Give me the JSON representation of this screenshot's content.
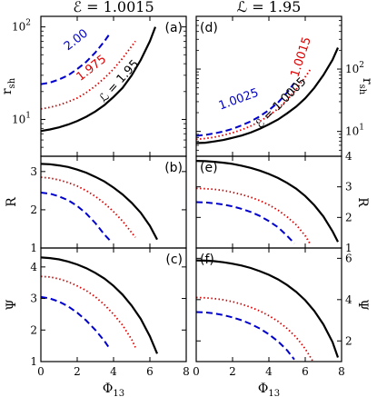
{
  "chart_data": [
    {
      "id": "a",
      "type": "line",
      "panel_label": "(a)",
      "title": "ℰ = 1.0015",
      "ylabel_main": "r",
      "ylabel_sub": "sh",
      "xlim": [
        0,
        8
      ],
      "ylim": [
        4,
        130
      ],
      "yscale": "log",
      "yticks": [
        10,
        100
      ],
      "ytick_labels": [
        "10¹",
        "10²"
      ],
      "series": [
        {
          "name": "2.00",
          "color": "#0000cc",
          "style": "dashed",
          "x": [
            0,
            0.5,
            1,
            1.5,
            2,
            2.5,
            3,
            3.5,
            3.8
          ],
          "y": [
            24,
            25,
            27,
            30,
            35,
            42,
            53,
            70,
            85
          ]
        },
        {
          "name": "1.975",
          "color": "#dd0000",
          "style": "dotted",
          "x": [
            0,
            0.5,
            1,
            1.5,
            2,
            2.5,
            3,
            3.5,
            4,
            4.5,
            5,
            5.2
          ],
          "y": [
            13,
            13.5,
            14.3,
            15.5,
            17,
            19.5,
            23,
            28,
            35,
            46,
            62,
            70
          ]
        },
        {
          "name": "ℒ = 1.95",
          "color": "#000000",
          "style": "solid",
          "x": [
            0,
            0.5,
            1,
            1.5,
            2,
            2.5,
            3,
            3.5,
            4,
            4.5,
            5,
            5.5,
            6,
            6.3
          ],
          "y": [
            7.5,
            7.8,
            8.2,
            8.8,
            9.6,
            10.7,
            12.2,
            14.3,
            17.5,
            22,
            30,
            44,
            70,
            100
          ]
        }
      ]
    },
    {
      "id": "b",
      "type": "line",
      "panel_label": "(b)",
      "ylabel": "R",
      "xlim": [
        0,
        8
      ],
      "ylim": [
        1,
        3.4
      ],
      "yticks": [
        1,
        2,
        3
      ],
      "ytick_labels": [
        "1",
        "2",
        "3"
      ],
      "series": [
        {
          "name": "2.00",
          "color": "#0000cc",
          "style": "dashed",
          "x": [
            0,
            0.5,
            1,
            1.5,
            2,
            2.5,
            3,
            3.5,
            3.8
          ],
          "y": [
            2.45,
            2.42,
            2.35,
            2.25,
            2.1,
            1.9,
            1.65,
            1.35,
            1.2
          ]
        },
        {
          "name": "1.975",
          "color": "#dd0000",
          "style": "dotted",
          "x": [
            0,
            0.5,
            1,
            1.5,
            2,
            2.5,
            3,
            3.5,
            4,
            4.5,
            5,
            5.2
          ],
          "y": [
            2.85,
            2.83,
            2.78,
            2.71,
            2.62,
            2.5,
            2.35,
            2.17,
            1.95,
            1.7,
            1.4,
            1.28
          ]
        },
        {
          "name": "ℒ = 1.95",
          "color": "#000000",
          "style": "solid",
          "x": [
            0,
            0.5,
            1,
            1.5,
            2,
            2.5,
            3,
            3.5,
            4,
            4.5,
            5,
            5.5,
            6,
            6.4
          ],
          "y": [
            3.2,
            3.19,
            3.16,
            3.12,
            3.05,
            2.97,
            2.86,
            2.74,
            2.58,
            2.4,
            2.18,
            1.92,
            1.58,
            1.22
          ]
        }
      ]
    },
    {
      "id": "c",
      "type": "line",
      "panel_label": "(c)",
      "ylabel": "Ψ",
      "xlim": [
        0,
        8
      ],
      "ylim": [
        1,
        4.6
      ],
      "xticks": [
        0,
        2,
        4,
        6,
        8
      ],
      "xtick_labels": [
        "0",
        "2",
        "4",
        "6",
        "8"
      ],
      "xlabel_main": "Φ",
      "xlabel_sub": "13",
      "yticks": [
        1,
        2,
        3,
        4
      ],
      "ytick_labels": [
        "1",
        "2",
        "3",
        "4"
      ],
      "series": [
        {
          "name": "2.00",
          "color": "#0000cc",
          "style": "dashed",
          "x": [
            0,
            0.5,
            1,
            1.5,
            2,
            2.5,
            3,
            3.5,
            3.8
          ],
          "y": [
            3.05,
            3.0,
            2.9,
            2.75,
            2.55,
            2.3,
            2.0,
            1.65,
            1.4
          ]
        },
        {
          "name": "1.975",
          "color": "#dd0000",
          "style": "dotted",
          "x": [
            0,
            0.5,
            1,
            1.5,
            2,
            2.5,
            3,
            3.5,
            4,
            4.5,
            5,
            5.2
          ],
          "y": [
            3.7,
            3.68,
            3.62,
            3.53,
            3.4,
            3.25,
            3.05,
            2.8,
            2.5,
            2.15,
            1.7,
            1.45
          ]
        },
        {
          "name": "ℒ = 1.95",
          "color": "#000000",
          "style": "solid",
          "x": [
            0,
            0.5,
            1,
            1.5,
            2,
            2.5,
            3,
            3.5,
            4,
            4.5,
            5,
            5.5,
            6,
            6.4
          ],
          "y": [
            4.3,
            4.28,
            4.24,
            4.17,
            4.08,
            3.96,
            3.81,
            3.63,
            3.4,
            3.12,
            2.77,
            2.35,
            1.8,
            1.25
          ]
        }
      ]
    },
    {
      "id": "d",
      "type": "line",
      "panel_label": "(d)",
      "title": "ℒ = 1.95",
      "ylabel_main": "r",
      "ylabel_sub": "sh",
      "xlim": [
        0,
        8
      ],
      "ylim": [
        4,
        700
      ],
      "yscale": "log",
      "yticks": [
        10,
        100
      ],
      "ytick_labels": [
        "10¹",
        "10²"
      ],
      "series": [
        {
          "name": "1.0025",
          "color": "#0000cc",
          "style": "dashed",
          "x": [
            0,
            0.5,
            1,
            1.5,
            2,
            2.5,
            3,
            3.5,
            4,
            4.5,
            5,
            5.4
          ],
          "y": [
            8.5,
            8.8,
            9.3,
            10,
            11,
            12.5,
            14.5,
            17.5,
            22,
            29,
            42,
            60
          ]
        },
        {
          "name": "1.0015",
          "color": "#dd0000",
          "style": "dotted",
          "x": [
            0,
            0.5,
            1,
            1.5,
            2,
            2.5,
            3,
            3.5,
            4,
            4.5,
            5,
            5.5,
            6,
            6.3
          ],
          "y": [
            7.5,
            7.7,
            8.1,
            8.7,
            9.5,
            10.6,
            12.2,
            14.5,
            18,
            23,
            32,
            47,
            75,
            100
          ]
        },
        {
          "name": "ℰ = 1.0005",
          "color": "#000000",
          "style": "solid",
          "x": [
            0,
            0.5,
            1,
            1.5,
            2,
            2.5,
            3,
            3.5,
            4,
            4.5,
            5,
            5.5,
            6,
            6.5,
            7,
            7.5,
            7.8
          ],
          "y": [
            6.5,
            6.6,
            6.9,
            7.3,
            7.9,
            8.6,
            9.6,
            11,
            13,
            15.5,
            19.5,
            25,
            34,
            50,
            80,
            140,
            220
          ]
        }
      ]
    },
    {
      "id": "e",
      "type": "line",
      "panel_label": "(e)",
      "ylabel": "R",
      "xlim": [
        0,
        8
      ],
      "ylim": [
        1,
        4
      ],
      "yticks": [
        1,
        2,
        3,
        4
      ],
      "ytick_labels": [
        "1",
        "2",
        "3",
        "4"
      ],
      "series": [
        {
          "name": "1.0025",
          "color": "#0000cc",
          "style": "dashed",
          "x": [
            0,
            0.5,
            1,
            1.5,
            2,
            2.5,
            3,
            3.5,
            4,
            4.5,
            5,
            5.4
          ],
          "y": [
            2.5,
            2.49,
            2.46,
            2.42,
            2.36,
            2.28,
            2.18,
            2.05,
            1.88,
            1.68,
            1.4,
            1.15
          ]
        },
        {
          "name": "1.0015",
          "color": "#dd0000",
          "style": "dotted",
          "x": [
            0,
            0.5,
            1,
            1.5,
            2,
            2.5,
            3,
            3.5,
            4,
            4.5,
            5,
            5.5,
            6,
            6.3
          ],
          "y": [
            2.95,
            2.94,
            2.92,
            2.88,
            2.82,
            2.75,
            2.66,
            2.55,
            2.41,
            2.24,
            2.02,
            1.76,
            1.4,
            1.1
          ]
        },
        {
          "name": "ℰ = 1.0005",
          "color": "#000000",
          "style": "solid",
          "x": [
            0,
            0.5,
            1,
            1.5,
            2,
            2.5,
            3,
            3.5,
            4,
            4.5,
            5,
            5.5,
            6,
            6.5,
            7,
            7.5,
            7.8
          ],
          "y": [
            3.85,
            3.84,
            3.82,
            3.79,
            3.75,
            3.69,
            3.62,
            3.53,
            3.42,
            3.29,
            3.13,
            2.94,
            2.7,
            2.4,
            2.03,
            1.55,
            1.2
          ]
        }
      ]
    },
    {
      "id": "f",
      "type": "line",
      "panel_label": "(f)",
      "ylabel": "Ψ",
      "xlim": [
        0,
        8
      ],
      "ylim": [
        1,
        6.5
      ],
      "xticks": [
        0,
        2,
        4,
        6,
        8
      ],
      "xtick_labels": [
        "0",
        "2",
        "4",
        "6",
        "8"
      ],
      "xlabel_main": "Φ",
      "xlabel_sub": "13",
      "yticks": [
        2,
        4,
        6
      ],
      "ytick_labels": [
        "2",
        "4",
        "6"
      ],
      "series": [
        {
          "name": "1.0025",
          "color": "#0000cc",
          "style": "dashed",
          "x": [
            0,
            0.5,
            1,
            1.5,
            2,
            2.5,
            3,
            3.5,
            4,
            4.5,
            5,
            5.4
          ],
          "y": [
            3.4,
            3.38,
            3.33,
            3.25,
            3.14,
            3.0,
            2.82,
            2.6,
            2.32,
            1.98,
            1.55,
            1.1
          ]
        },
        {
          "name": "1.0015",
          "color": "#dd0000",
          "style": "dotted",
          "x": [
            0,
            0.5,
            1,
            1.5,
            2,
            2.5,
            3,
            3.5,
            4,
            4.5,
            5,
            5.5,
            6,
            6.4
          ],
          "y": [
            4.1,
            4.09,
            4.05,
            3.99,
            3.9,
            3.78,
            3.63,
            3.45,
            3.22,
            2.95,
            2.6,
            2.18,
            1.62,
            1.05
          ]
        },
        {
          "name": "ℰ = 1.0005",
          "color": "#000000",
          "style": "solid",
          "x": [
            0,
            0.5,
            1,
            1.5,
            2,
            2.5,
            3,
            3.5,
            4,
            4.5,
            5,
            5.5,
            6,
            6.5,
            7,
            7.5,
            7.8
          ],
          "y": [
            5.9,
            5.89,
            5.86,
            5.81,
            5.74,
            5.65,
            5.53,
            5.38,
            5.2,
            4.98,
            4.71,
            4.38,
            3.97,
            3.45,
            2.8,
            1.95,
            1.2
          ]
        }
      ]
    }
  ]
}
